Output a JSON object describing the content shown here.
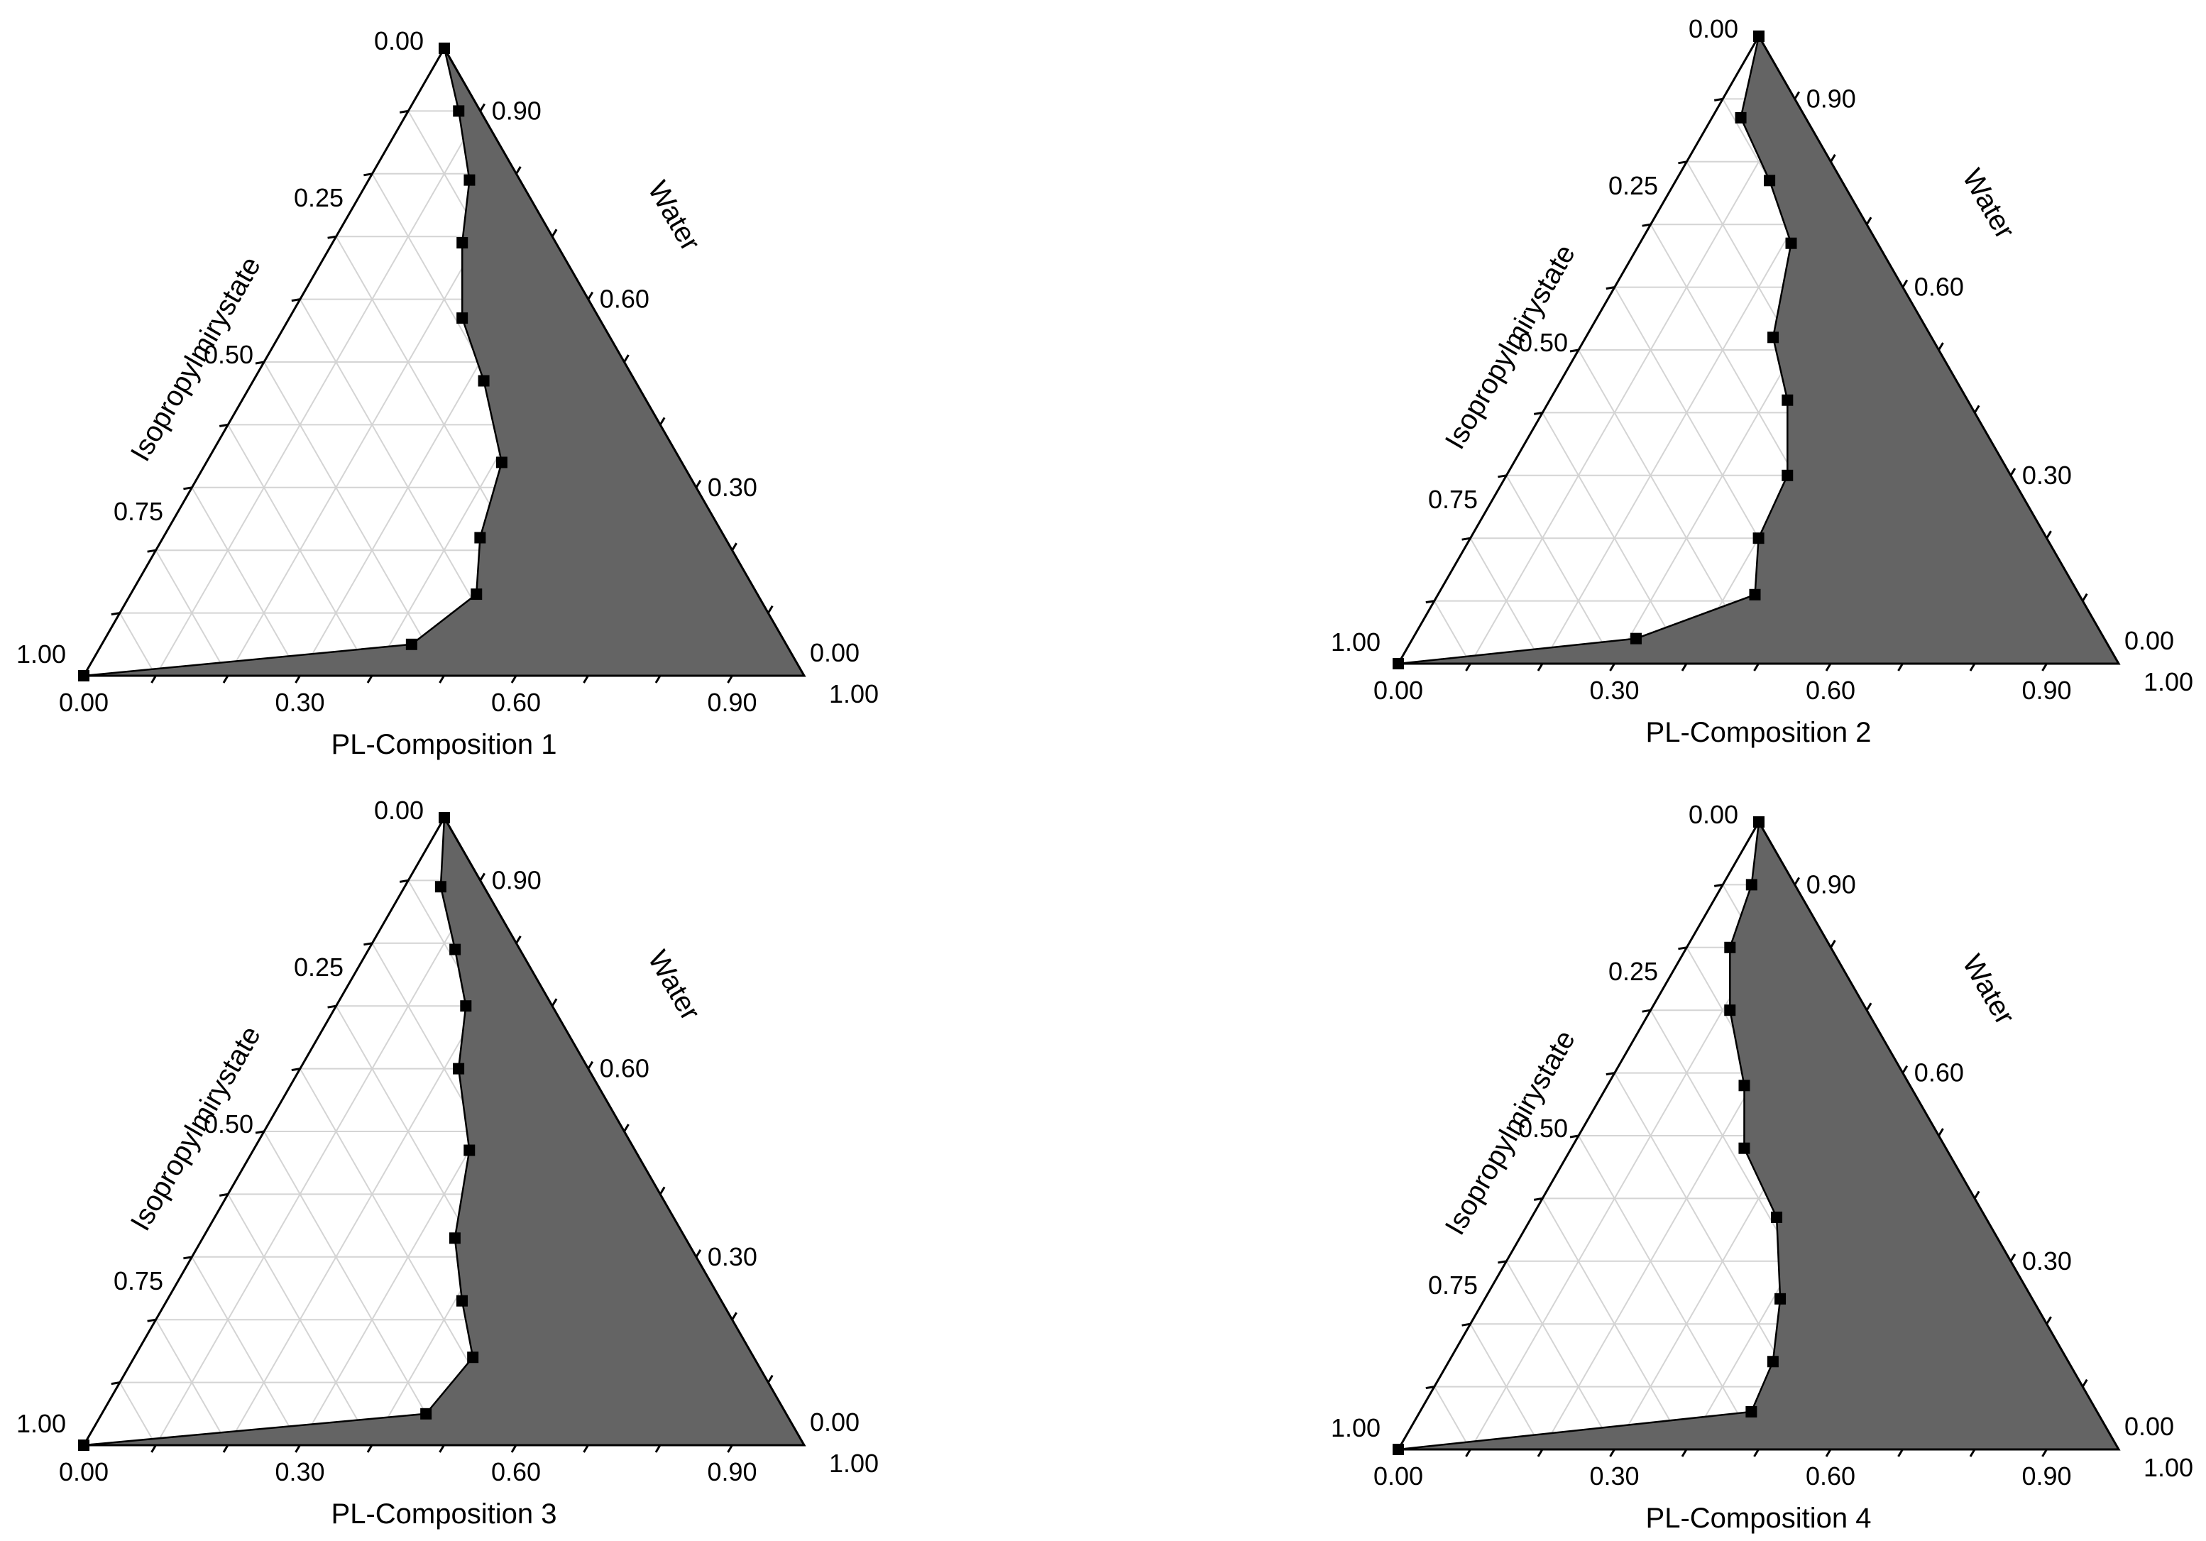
{
  "colors": {
    "region_fill": "#646464",
    "grid": "#d4d4d4",
    "frame": "#000000",
    "marker": "#000000"
  },
  "chart_data": [
    {
      "type": "ternary",
      "xlabel": "PL-Composition 1",
      "left_axis_label": "Isopropylmirystate",
      "right_axis_label": "Water",
      "bottom_ticks": [
        "0.00",
        "0.30",
        "0.60",
        "0.90",
        "1.00"
      ],
      "left_ticks": [
        "0.00",
        "0.25",
        "0.50",
        "0.75",
        "1.00"
      ],
      "right_ticks": [
        "0.00",
        "0.30",
        "0.60",
        "0.90"
      ],
      "grid": true,
      "shaded_region": "microemulsion",
      "points": [
        {
          "pl": 0.0,
          "water": 1.0
        },
        {
          "pl": 0.07,
          "water": 0.9
        },
        {
          "pl": 0.14,
          "water": 0.79
        },
        {
          "pl": 0.18,
          "water": 0.69
        },
        {
          "pl": 0.24,
          "water": 0.57
        },
        {
          "pl": 0.32,
          "water": 0.47
        },
        {
          "pl": 0.41,
          "water": 0.34
        },
        {
          "pl": 0.44,
          "water": 0.22
        },
        {
          "pl": 0.48,
          "water": 0.13
        },
        {
          "pl": 0.43,
          "water": 0.05
        },
        {
          "pl": 0.0,
          "water": 0.0
        }
      ]
    },
    {
      "type": "ternary",
      "xlabel": "PL-Composition 2",
      "left_axis_label": "Isopropylmirystate",
      "right_axis_label": "Water",
      "bottom_ticks": [
        "0.00",
        "0.30",
        "0.60",
        "0.90",
        "1.00"
      ],
      "left_ticks": [
        "0.00",
        "0.25",
        "0.50",
        "0.75",
        "1.00"
      ],
      "right_ticks": [
        "0.00",
        "0.30",
        "0.60",
        "0.90"
      ],
      "grid": true,
      "shaded_region": "microemulsion",
      "points": [
        {
          "pl": 0.0,
          "water": 1.0
        },
        {
          "pl": 0.04,
          "water": 0.87
        },
        {
          "pl": 0.13,
          "water": 0.77
        },
        {
          "pl": 0.21,
          "water": 0.67
        },
        {
          "pl": 0.26,
          "water": 0.52
        },
        {
          "pl": 0.33,
          "water": 0.42
        },
        {
          "pl": 0.39,
          "water": 0.3
        },
        {
          "pl": 0.4,
          "water": 0.2
        },
        {
          "pl": 0.44,
          "water": 0.11
        },
        {
          "pl": 0.31,
          "water": 0.04
        },
        {
          "pl": 0.0,
          "water": 0.0
        }
      ]
    },
    {
      "type": "ternary",
      "xlabel": "PL-Composition 3",
      "left_axis_label": "Isopropylmirystate",
      "right_axis_label": "Water",
      "bottom_ticks": [
        "0.00",
        "0.30",
        "0.60",
        "0.90",
        "1.00"
      ],
      "left_ticks": [
        "0.00",
        "0.25",
        "0.50",
        "0.75",
        "1.00"
      ],
      "right_ticks": [
        "0.00",
        "0.30",
        "0.60",
        "0.90"
      ],
      "grid": true,
      "shaded_region": "microemulsion",
      "points": [
        {
          "pl": 0.0,
          "water": 1.0
        },
        {
          "pl": 0.05,
          "water": 0.89
        },
        {
          "pl": 0.12,
          "water": 0.79
        },
        {
          "pl": 0.18,
          "water": 0.7
        },
        {
          "pl": 0.22,
          "water": 0.6
        },
        {
          "pl": 0.3,
          "water": 0.47
        },
        {
          "pl": 0.35,
          "water": 0.33
        },
        {
          "pl": 0.41,
          "water": 0.23
        },
        {
          "pl": 0.47,
          "water": 0.14
        },
        {
          "pl": 0.45,
          "water": 0.05
        },
        {
          "pl": 0.0,
          "water": 0.0
        }
      ]
    },
    {
      "type": "ternary",
      "xlabel": "PL-Composition 4",
      "left_axis_label": "Isopropylmirystate",
      "right_axis_label": "Water",
      "bottom_ticks": [
        "0.00",
        "0.30",
        "0.60",
        "0.90",
        "1.00"
      ],
      "left_ticks": [
        "0.00",
        "0.25",
        "0.50",
        "0.75",
        "1.00"
      ],
      "right_ticks": [
        "0.00",
        "0.30",
        "0.60",
        "0.90"
      ],
      "grid": true,
      "shaded_region": "microemulsion",
      "points": [
        {
          "pl": 0.0,
          "water": 1.0
        },
        {
          "pl": 0.04,
          "water": 0.9
        },
        {
          "pl": 0.06,
          "water": 0.8
        },
        {
          "pl": 0.11,
          "water": 0.7
        },
        {
          "pl": 0.19,
          "water": 0.58
        },
        {
          "pl": 0.24,
          "water": 0.48
        },
        {
          "pl": 0.34,
          "water": 0.37
        },
        {
          "pl": 0.41,
          "water": 0.24
        },
        {
          "pl": 0.45,
          "water": 0.14
        },
        {
          "pl": 0.46,
          "water": 0.06
        },
        {
          "pl": 0.0,
          "water": 0.0
        }
      ]
    }
  ]
}
